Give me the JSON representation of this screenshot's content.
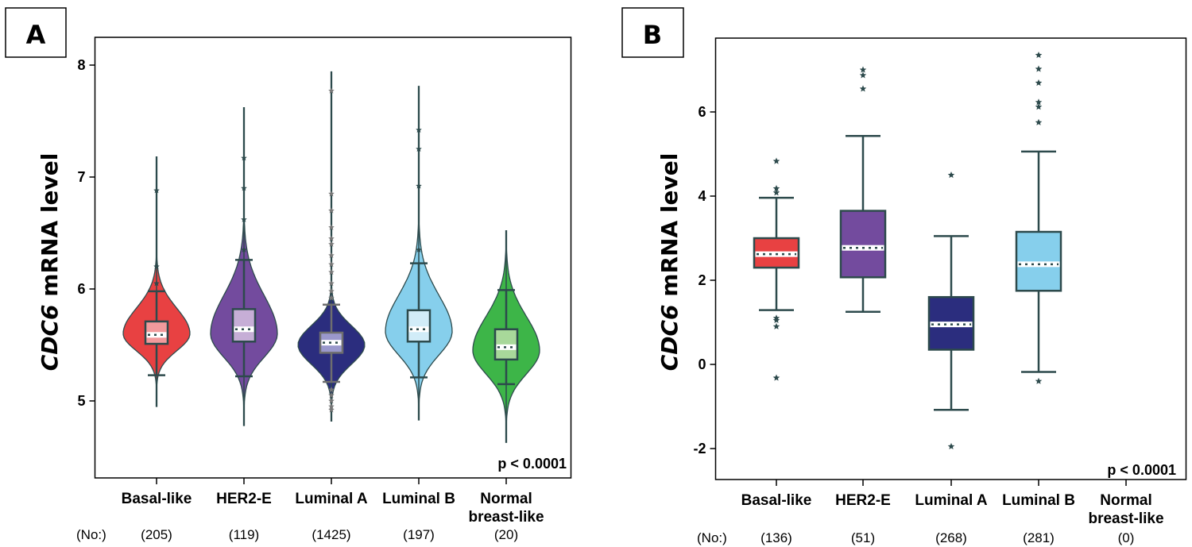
{
  "chart_data": [
    {
      "panel": "A",
      "type": "violin",
      "title": "",
      "ylabel_italic": "CDC6",
      "ylabel_rest": " mRNA level",
      "xlabel": "",
      "ylim": [
        4.55,
        8.25
      ],
      "yticks": [
        5,
        6,
        7,
        8
      ],
      "ytick_labels": [
        "5",
        "6",
        "7",
        "8"
      ],
      "annotation": "p < 0.0001",
      "n_prefix": "(No:)",
      "categories": [
        {
          "label": [
            "Basal-like"
          ],
          "n": "(205)",
          "color": "#e84142",
          "box_color": "#f29a9c",
          "q1": 5.51,
          "median": 5.59,
          "q3": 5.71,
          "whisker_low": 5.23,
          "whisker_high": 5.98,
          "min": 4.95,
          "max": 7.18,
          "width": 0.82,
          "mode": 5.6,
          "outliers": [
            6.88,
            6.2,
            6.05
          ]
        },
        {
          "label": [
            "HER2-E"
          ],
          "n": "(119)",
          "color": "#734b9e",
          "box_color": "#c6aed6",
          "q1": 5.53,
          "median": 5.64,
          "q3": 5.82,
          "whisker_low": 5.22,
          "whisker_high": 6.26,
          "min": 4.78,
          "max": 7.62,
          "width": 0.85,
          "mode": 5.6,
          "outliers": [
            7.17,
            6.9,
            6.62,
            6.35
          ]
        },
        {
          "label": [
            "Luminal A"
          ],
          "n": "(1425)",
          "color": "#2b2d7e",
          "box_color": "#9a98cc",
          "q1": 5.43,
          "median": 5.52,
          "q3": 5.61,
          "whisker_low": 5.17,
          "whisker_high": 5.86,
          "min": 4.82,
          "max": 7.94,
          "width": 0.85,
          "mode": 5.5,
          "outliers": [
            7.77,
            6.85,
            6.7,
            6.55,
            6.45,
            6.4,
            6.3,
            6.22,
            6.15,
            6.05,
            5.98,
            5.92,
            5.1,
            5.05,
            5.0,
            4.95,
            4.92
          ]
        },
        {
          "label": [
            "Luminal B"
          ],
          "n": "(197)",
          "color": "#86cfec",
          "box_color": "#d1ecf8",
          "q1": 5.53,
          "median": 5.64,
          "q3": 5.81,
          "whisker_low": 5.21,
          "whisker_high": 6.23,
          "min": 4.83,
          "max": 7.81,
          "width": 0.85,
          "mode": 5.62,
          "outliers": [
            7.42,
            7.25,
            6.92,
            6.35
          ]
        },
        {
          "label": [
            "Normal",
            "breast-like"
          ],
          "n": "(20)",
          "color": "#3db548",
          "box_color": "#a8d89a",
          "q1": 5.37,
          "median": 5.48,
          "q3": 5.64,
          "whisker_low": 5.15,
          "whisker_high": 5.99,
          "min": 4.63,
          "max": 6.52,
          "width": 0.85,
          "mode": 5.45,
          "outliers": []
        }
      ]
    },
    {
      "panel": "B",
      "type": "box",
      "title": "",
      "ylabel_italic": "CDC6",
      "ylabel_rest": " mRNA level",
      "xlabel": "",
      "ylim": [
        -2.75,
        7.7
      ],
      "yticks": [
        -2,
        0,
        2,
        4,
        6
      ],
      "ytick_labels": [
        "-2",
        "0",
        "2",
        "4",
        "6"
      ],
      "annotation": "p < 0.0001",
      "n_prefix": "(No:)",
      "categories": [
        {
          "label": [
            "Basal-like"
          ],
          "n": "(136)",
          "color": "#e84142",
          "q1": 2.3,
          "median": 2.62,
          "q3": 3.0,
          "whisker_low": 1.29,
          "whisker_high": 3.96,
          "outliers": [
            4.83,
            4.18,
            4.08,
            1.1,
            1.05,
            0.9,
            -0.32
          ]
        },
        {
          "label": [
            "HER2-E"
          ],
          "n": "(51)",
          "color": "#734b9e",
          "q1": 2.07,
          "median": 2.77,
          "q3": 3.65,
          "whisker_low": 1.25,
          "whisker_high": 5.43,
          "outliers": [
            7.0,
            6.87,
            6.55
          ]
        },
        {
          "label": [
            "Luminal A"
          ],
          "n": "(268)",
          "color": "#2b2d7e",
          "q1": 0.35,
          "median": 0.95,
          "q3": 1.6,
          "whisker_low": -1.08,
          "whisker_high": 3.05,
          "outliers": [
            4.5,
            -1.95
          ]
        },
        {
          "label": [
            "Luminal B"
          ],
          "n": "(281)",
          "color": "#86cfec",
          "q1": 1.75,
          "median": 2.38,
          "q3": 3.15,
          "whisker_low": -0.18,
          "whisker_high": 5.06,
          "outliers": [
            7.35,
            7.02,
            6.69,
            6.23,
            6.12,
            5.75,
            -0.4
          ]
        },
        {
          "label": [
            "Normal",
            "breast-like"
          ],
          "n": "(0)",
          "color": "#3db548",
          "q1": null,
          "median": null,
          "q3": null,
          "whisker_low": null,
          "whisker_high": null,
          "outliers": []
        }
      ]
    }
  ],
  "colors": {
    "outline": "#2d4a4c",
    "frame": "#000000",
    "outlier_gray": "#777777"
  }
}
